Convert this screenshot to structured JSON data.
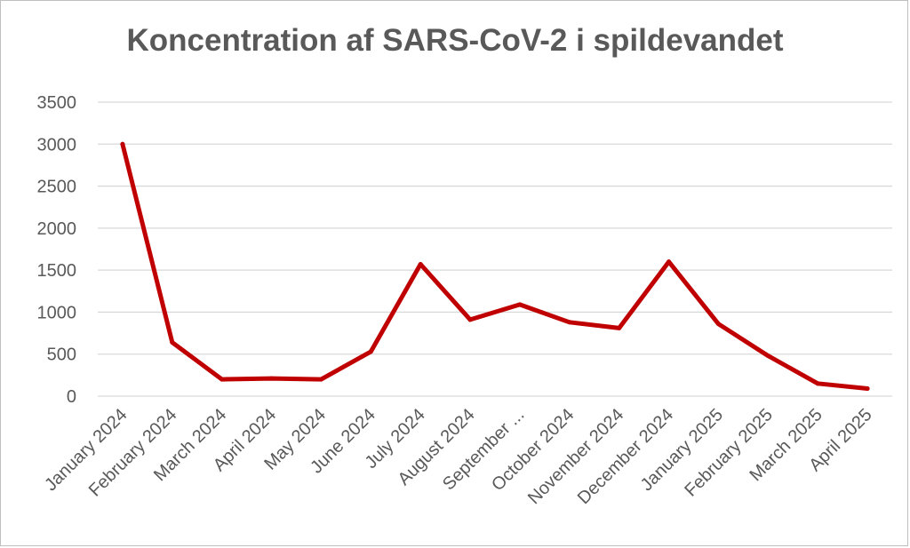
{
  "chart_data": {
    "type": "line",
    "title": "Koncentration af SARS-CoV-2 i spildevandet",
    "xlabel": "",
    "ylabel": "",
    "categories": [
      "January 2024",
      "February 2024",
      "March 2024",
      "April 2024",
      "May 2024",
      "June 2024",
      "July 2024",
      "August 2024",
      "September ...",
      "October 2024",
      "November 2024",
      "December 2024",
      "January 2025",
      "February 2025",
      "March 2025",
      "April 2025"
    ],
    "series": [
      {
        "values": [
          3000,
          640,
          200,
          210,
          200,
          530,
          1570,
          910,
          1090,
          880,
          810,
          1600,
          860,
          480,
          150,
          90
        ]
      }
    ],
    "ylim": [
      0,
      3500
    ],
    "yticks": [
      0,
      500,
      1000,
      1500,
      2000,
      2500,
      3000,
      3500
    ],
    "grid": true,
    "legend": "none",
    "line_color": "#C00000",
    "grid_color": "#d9d9d9",
    "text_color": "#595959"
  }
}
